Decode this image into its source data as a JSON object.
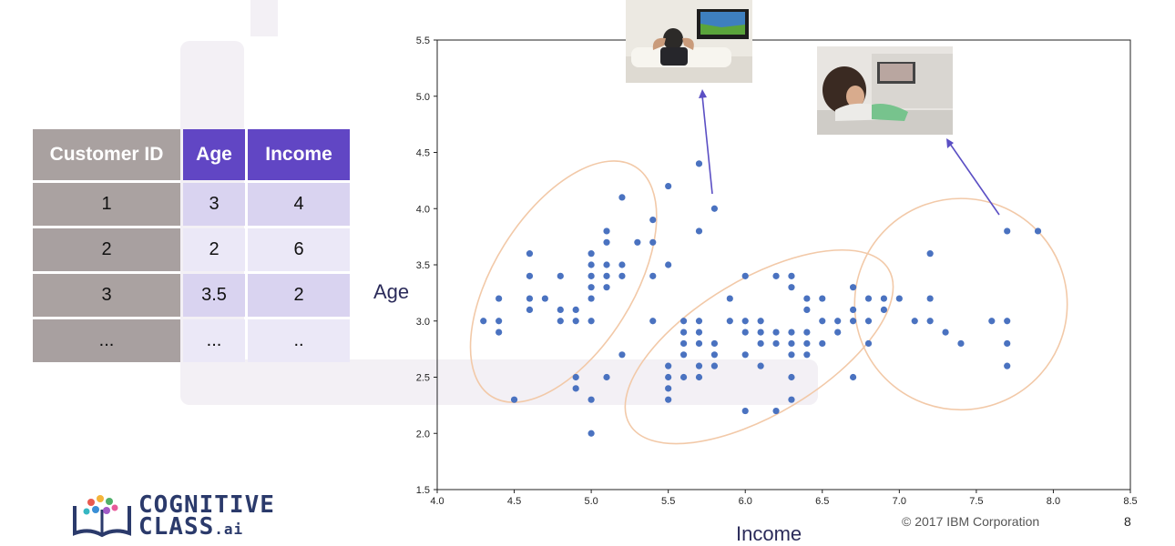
{
  "table": {
    "headers": [
      "Customer ID",
      "Age",
      "Income"
    ],
    "rows": [
      [
        "1",
        "3",
        "4"
      ],
      [
        "2",
        "2",
        "6"
      ],
      [
        "3",
        "3.5",
        "2"
      ],
      [
        "...",
        "...",
        ".."
      ]
    ]
  },
  "footer": {
    "logo_line1": "COGNITIVE",
    "logo_line2": "CLASS",
    "logo_suffix": ".ai",
    "copyright": "© 2017 IBM Corporation",
    "page": "8"
  },
  "colors": {
    "point": "#4a72c0",
    "ellipse": "#f2c9a8",
    "arrow": "#5b4fc4",
    "header_accent": "#6146c4",
    "header_gray": "#a9a1a0"
  },
  "chart_data": {
    "type": "scatter",
    "xlabel": "Income",
    "ylabel": "Age",
    "xlim": [
      4.0,
      8.5
    ],
    "ylim": [
      1.5,
      5.5
    ],
    "xticks": [
      "4.0",
      "4.5",
      "5.0",
      "5.5",
      "6.0",
      "6.5",
      "7.0",
      "7.5",
      "8.0",
      "8.5"
    ],
    "yticks": [
      "1.5",
      "2.0",
      "2.5",
      "3.0",
      "3.5",
      "4.0",
      "4.5",
      "5.0",
      "5.5"
    ],
    "grid": false,
    "points": [
      [
        4.3,
        3.0
      ],
      [
        4.4,
        3.2
      ],
      [
        4.4,
        3.0
      ],
      [
        4.4,
        2.9
      ],
      [
        4.5,
        2.3
      ],
      [
        4.6,
        3.6
      ],
      [
        4.6,
        3.4
      ],
      [
        4.6,
        3.2
      ],
      [
        4.6,
        3.1
      ],
      [
        4.7,
        3.2
      ],
      [
        4.8,
        3.4
      ],
      [
        4.8,
        3.1
      ],
      [
        4.8,
        3.0
      ],
      [
        4.9,
        3.1
      ],
      [
        4.9,
        3.0
      ],
      [
        4.9,
        2.5
      ],
      [
        4.9,
        2.4
      ],
      [
        5.0,
        3.6
      ],
      [
        5.0,
        3.5
      ],
      [
        5.0,
        3.4
      ],
      [
        5.0,
        3.3
      ],
      [
        5.0,
        3.2
      ],
      [
        5.0,
        3.0
      ],
      [
        5.0,
        2.3
      ],
      [
        5.0,
        2.0
      ],
      [
        5.1,
        3.8
      ],
      [
        5.1,
        3.7
      ],
      [
        5.1,
        3.5
      ],
      [
        5.1,
        3.4
      ],
      [
        5.1,
        3.3
      ],
      [
        5.1,
        2.5
      ],
      [
        5.2,
        4.1
      ],
      [
        5.2,
        3.5
      ],
      [
        5.2,
        3.4
      ],
      [
        5.2,
        2.7
      ],
      [
        5.3,
        3.7
      ],
      [
        5.4,
        3.9
      ],
      [
        5.4,
        3.7
      ],
      [
        5.4,
        3.4
      ],
      [
        5.4,
        3.0
      ],
      [
        5.5,
        4.2
      ],
      [
        5.5,
        3.5
      ],
      [
        5.5,
        2.6
      ],
      [
        5.5,
        2.5
      ],
      [
        5.5,
        2.4
      ],
      [
        5.5,
        2.3
      ],
      [
        5.6,
        3.0
      ],
      [
        5.6,
        2.9
      ],
      [
        5.6,
        2.8
      ],
      [
        5.6,
        2.7
      ],
      [
        5.6,
        2.5
      ],
      [
        5.7,
        4.4
      ],
      [
        5.7,
        3.8
      ],
      [
        5.7,
        3.0
      ],
      [
        5.7,
        2.9
      ],
      [
        5.7,
        2.8
      ],
      [
        5.7,
        2.6
      ],
      [
        5.7,
        2.5
      ],
      [
        5.8,
        4.0
      ],
      [
        5.8,
        2.8
      ],
      [
        5.8,
        2.7
      ],
      [
        5.8,
        2.6
      ],
      [
        5.9,
        3.2
      ],
      [
        5.9,
        3.0
      ],
      [
        6.0,
        3.4
      ],
      [
        6.0,
        3.0
      ],
      [
        6.0,
        2.9
      ],
      [
        6.0,
        2.7
      ],
      [
        6.0,
        2.2
      ],
      [
        6.1,
        3.0
      ],
      [
        6.1,
        2.9
      ],
      [
        6.1,
        2.8
      ],
      [
        6.1,
        2.6
      ],
      [
        6.2,
        3.4
      ],
      [
        6.2,
        2.9
      ],
      [
        6.2,
        2.8
      ],
      [
        6.2,
        2.2
      ],
      [
        6.3,
        3.4
      ],
      [
        6.3,
        3.3
      ],
      [
        6.3,
        2.9
      ],
      [
        6.3,
        2.8
      ],
      [
        6.3,
        2.7
      ],
      [
        6.3,
        2.5
      ],
      [
        6.3,
        2.3
      ],
      [
        6.4,
        3.2
      ],
      [
        6.4,
        3.1
      ],
      [
        6.4,
        2.9
      ],
      [
        6.4,
        2.8
      ],
      [
        6.4,
        2.7
      ],
      [
        6.5,
        3.2
      ],
      [
        6.5,
        3.0
      ],
      [
        6.5,
        2.8
      ],
      [
        6.6,
        3.0
      ],
      [
        6.6,
        2.9
      ],
      [
        6.7,
        3.3
      ],
      [
        6.7,
        3.1
      ],
      [
        6.7,
        3.0
      ],
      [
        6.7,
        2.5
      ],
      [
        6.8,
        3.2
      ],
      [
        6.8,
        3.0
      ],
      [
        6.8,
        2.8
      ],
      [
        6.9,
        3.2
      ],
      [
        6.9,
        3.1
      ],
      [
        7.0,
        3.2
      ],
      [
        7.1,
        3.0
      ],
      [
        7.2,
        3.6
      ],
      [
        7.2,
        3.2
      ],
      [
        7.2,
        3.0
      ],
      [
        7.3,
        2.9
      ],
      [
        7.4,
        2.8
      ],
      [
        7.6,
        3.0
      ],
      [
        7.7,
        3.8
      ],
      [
        7.7,
        3.0
      ],
      [
        7.7,
        2.8
      ],
      [
        7.7,
        2.6
      ],
      [
        7.9,
        3.8
      ]
    ],
    "clusters": [
      {
        "cx": 4.82,
        "cy": 3.35,
        "rx": 0.88,
        "ry": 0.62,
        "angle": 58
      },
      {
        "cx": 6.09,
        "cy": 2.77,
        "rx": 0.98,
        "ry": 0.6,
        "angle": 31
      },
      {
        "cx": 7.4,
        "cy": 3.15,
        "rx": 0.69,
        "ry": 0.94,
        "angle": 0
      }
    ]
  }
}
